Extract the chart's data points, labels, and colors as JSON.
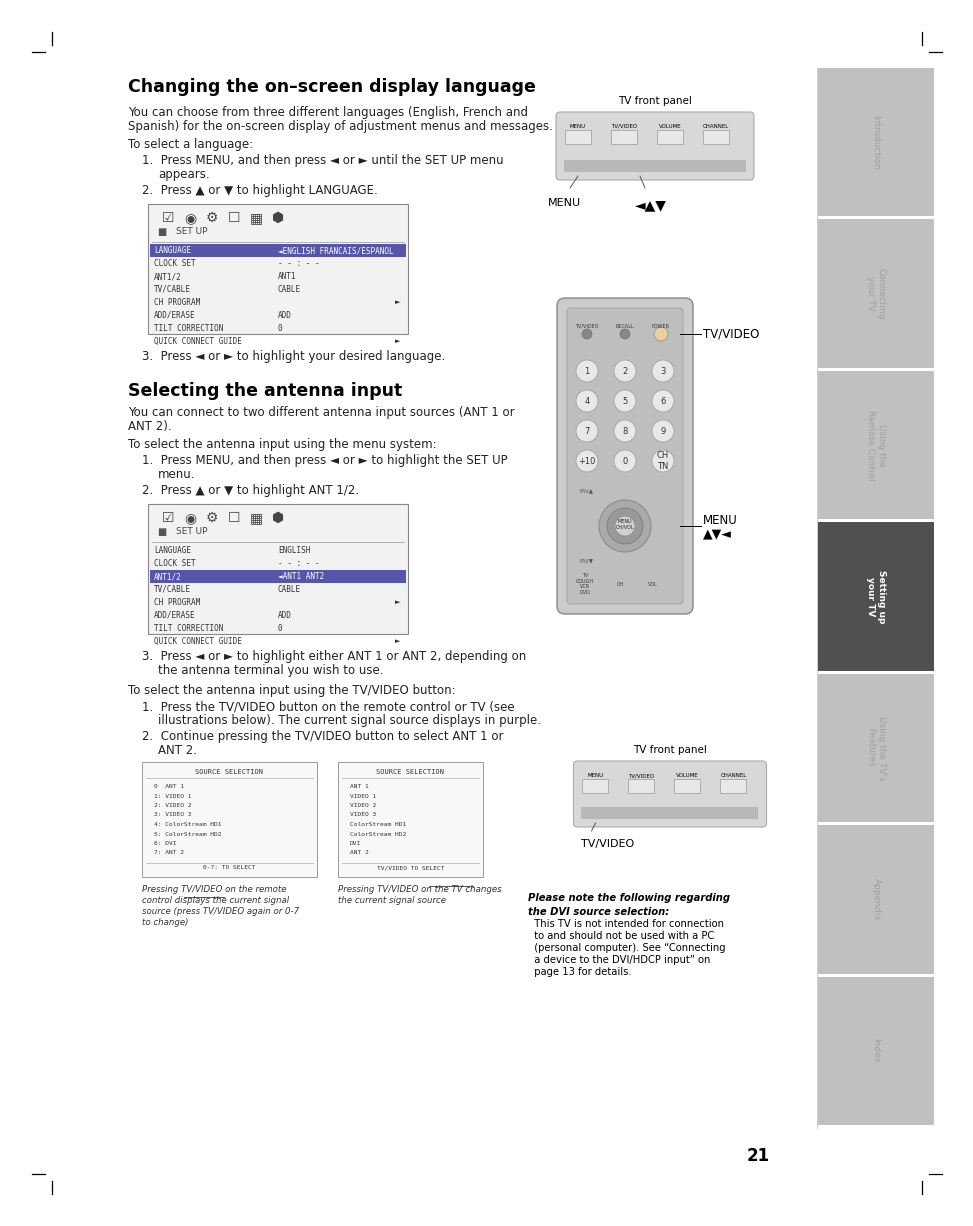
{
  "bg_color": "#ffffff",
  "page_number": "21",
  "sidebar_tabs": [
    {
      "label": "Introduction",
      "color": "#c0c0c0",
      "active": false
    },
    {
      "label": "Connecting\nyour TV",
      "color": "#c0c0c0",
      "active": false
    },
    {
      "label": "Using the\nRemote Control",
      "color": "#c0c0c0",
      "active": false
    },
    {
      "label": "Setting up\nyour TV",
      "color": "#505050",
      "active": true
    },
    {
      "label": "Using the TV's\nFeatures",
      "color": "#c0c0c0",
      "active": false
    },
    {
      "label": "Appendix",
      "color": "#c0c0c0",
      "active": false
    },
    {
      "label": "Index",
      "color": "#c0c0c0",
      "active": false
    }
  ],
  "title1": "Changing the on–screen display language",
  "title2": "Selecting the antenna input",
  "menu_items_1": [
    {
      "label": "LANGUAGE",
      "value": "◄ENGLISH FRANCAIS/ESPANOL",
      "highlight": true
    },
    {
      "label": "CLOCK SET",
      "value": "- - : - -",
      "highlight": false
    },
    {
      "label": "ANT1/2",
      "value": "ANT1",
      "highlight": false
    },
    {
      "label": "TV/CABLE",
      "value": "CABLE",
      "highlight": false
    },
    {
      "label": "CH PROGRAM",
      "value": "",
      "arrow": true,
      "highlight": false
    },
    {
      "label": "ADD/ERASE",
      "value": "ADD",
      "highlight": false
    },
    {
      "label": "TILT CORRECTION",
      "value": "0",
      "highlight": false
    },
    {
      "label": "QUICK CONNECT GUIDE",
      "value": "",
      "arrow": true,
      "highlight": false
    }
  ],
  "menu_items_2": [
    {
      "label": "LANGUAGE",
      "value": "ENGLISH",
      "highlight": false
    },
    {
      "label": "CLOCK SET",
      "value": "- - : - -",
      "highlight": false
    },
    {
      "label": "ANT1/2",
      "value": "◄ANT1 ANT2",
      "highlight": true
    },
    {
      "label": "TV/CABLE",
      "value": "CABLE",
      "highlight": false
    },
    {
      "label": "CH PROGRAM",
      "value": "",
      "arrow": true,
      "highlight": false
    },
    {
      "label": "ADD/ERASE",
      "value": "ADD",
      "highlight": false
    },
    {
      "label": "TILT CORRECTION",
      "value": "0",
      "highlight": false
    },
    {
      "label": "QUICK CONNECT GUIDE",
      "value": "",
      "arrow": true,
      "highlight": false
    }
  ],
  "source_items_left": [
    "0  ANT 1",
    "1: VIDEO 1",
    "2: VIDEO 2",
    "3: VIDEO 3",
    "4: ColorStream HD1",
    "5: ColorStream HD2",
    "6: DVI",
    "7: ANT 2"
  ],
  "source_items_right": [
    "ANT 1",
    "VIDEO 1",
    "VIDEO 2",
    "VIDEO 3",
    "ColorStream HD1",
    "ColorStream HD2",
    "DVI",
    "ANT 2"
  ]
}
